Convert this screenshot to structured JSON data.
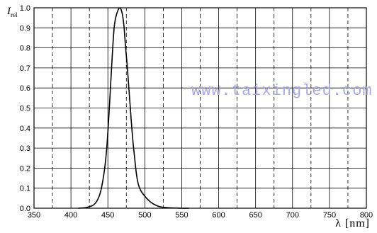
{
  "chart_data": {
    "type": "line",
    "title": "",
    "ylabel_main": "I",
    "ylabel_sub": "rel",
    "xlabel_symbol": "λ",
    "xlabel_unit": "nm",
    "xlim": [
      350,
      800
    ],
    "ylim": [
      0,
      1.0
    ],
    "x_ticks": [
      "350",
      "400",
      "450",
      "500",
      "550",
      "600",
      "650",
      "700",
      "750",
      "800"
    ],
    "y_ticks": [
      "0.0",
      "0.1",
      "0.2",
      "0.3",
      "0.4",
      "0.5",
      "0.6",
      "0.7",
      "0.8",
      "0.9",
      "1.0"
    ],
    "grid": true,
    "series": [
      {
        "x": [
          410,
          420,
          425,
          430,
          435,
          440,
          445,
          448,
          450,
          452,
          455,
          458,
          460,
          462,
          464,
          466,
          468,
          470,
          472,
          474,
          476,
          478,
          480,
          482,
          484,
          486,
          488,
          490,
          492,
          495,
          500,
          505,
          510,
          515,
          520,
          530,
          540,
          550,
          560
        ],
        "y": [
          0.0,
          0.003,
          0.008,
          0.015,
          0.035,
          0.08,
          0.18,
          0.28,
          0.38,
          0.5,
          0.7,
          0.88,
          0.94,
          0.97,
          0.99,
          1.0,
          0.99,
          0.96,
          0.9,
          0.8,
          0.72,
          0.62,
          0.52,
          0.42,
          0.33,
          0.26,
          0.19,
          0.14,
          0.11,
          0.085,
          0.06,
          0.04,
          0.025,
          0.015,
          0.008,
          0.003,
          0.001,
          0.0,
          0.0
        ]
      }
    ]
  },
  "watermark": "www.taixingled.com"
}
